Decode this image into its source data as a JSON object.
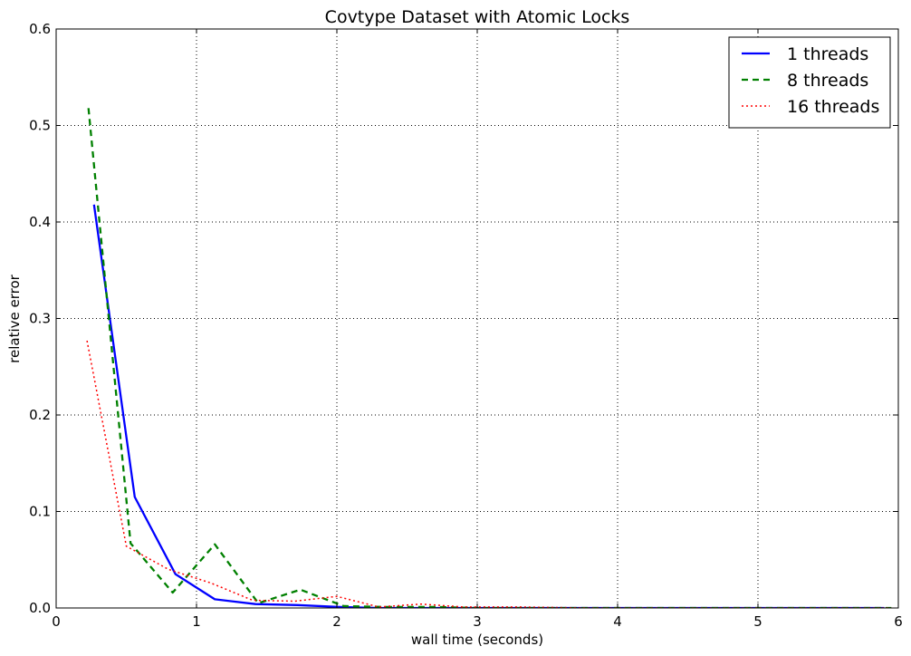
{
  "chart_data": {
    "type": "line",
    "title": "Covtype Dataset with Atomic Locks",
    "xlabel": "wall time (seconds)",
    "ylabel": "relative error",
    "xlim": [
      0,
      6
    ],
    "ylim": [
      0,
      0.6
    ],
    "xticks": [
      0,
      1,
      2,
      3,
      4,
      5,
      6
    ],
    "yticks": [
      0.0,
      0.1,
      0.2,
      0.3,
      0.4,
      0.5,
      0.6
    ],
    "xtick_labels": [
      "0",
      "1",
      "2",
      "3",
      "4",
      "5",
      "6"
    ],
    "ytick_labels": [
      "0.0",
      "0.1",
      "0.2",
      "0.3",
      "0.4",
      "0.5",
      "0.6"
    ],
    "grid": true,
    "legend_position": "top-right",
    "series": [
      {
        "name": "1 threads",
        "color": "#0000ff",
        "style": "solid",
        "x": [
          0.27,
          0.56,
          0.85,
          1.13,
          1.42,
          1.72,
          2.02,
          2.3,
          2.6,
          3.0,
          3.5,
          4.0,
          4.5,
          5.0,
          5.5,
          5.9
        ],
        "y": [
          0.418,
          0.115,
          0.035,
          0.009,
          0.004,
          0.003,
          0.001,
          0.0,
          0.0,
          0.0,
          0.0,
          0.0,
          0.0,
          0.0,
          0.0,
          0.0
        ]
      },
      {
        "name": "8 threads",
        "color": "#008000",
        "style": "dashed",
        "x": [
          0.23,
          0.53,
          0.83,
          1.13,
          1.44,
          1.74,
          2.05,
          2.35,
          2.7,
          3.0,
          3.5,
          4.0,
          4.5,
          5.0,
          5.5,
          5.95
        ],
        "y": [
          0.518,
          0.067,
          0.016,
          0.066,
          0.005,
          0.019,
          0.002,
          0.001,
          0.001,
          0.0,
          0.0,
          0.0,
          0.0,
          0.0,
          0.0,
          0.0
        ]
      },
      {
        "name": "16 threads",
        "color": "#ff0000",
        "style": "dotted",
        "x": [
          0.22,
          0.5,
          0.8,
          1.1,
          1.4,
          1.7,
          2.0,
          2.3,
          2.6,
          2.9,
          3.3,
          3.8,
          4.3,
          4.8,
          5.3,
          5.95
        ],
        "y": [
          0.277,
          0.064,
          0.04,
          0.026,
          0.008,
          0.007,
          0.012,
          0.001,
          0.004,
          0.001,
          0.001,
          0.0,
          0.0,
          0.0,
          0.0,
          0.0
        ]
      }
    ]
  }
}
